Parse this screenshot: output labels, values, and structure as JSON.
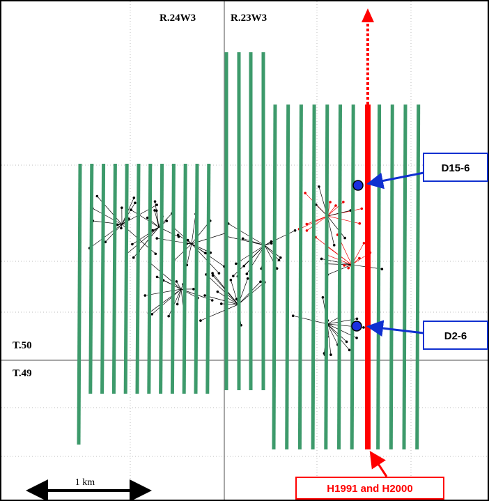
{
  "grid_labels": {
    "range_left": "R.24W3",
    "range_right": "R.23W3",
    "township_upper": "T.50",
    "township_lower": "T.49"
  },
  "callouts": [
    {
      "label": "D15-6"
    },
    {
      "label": "D2-6"
    }
  ],
  "line_label": "H1991 and H2000",
  "scale_label": "1 km"
}
